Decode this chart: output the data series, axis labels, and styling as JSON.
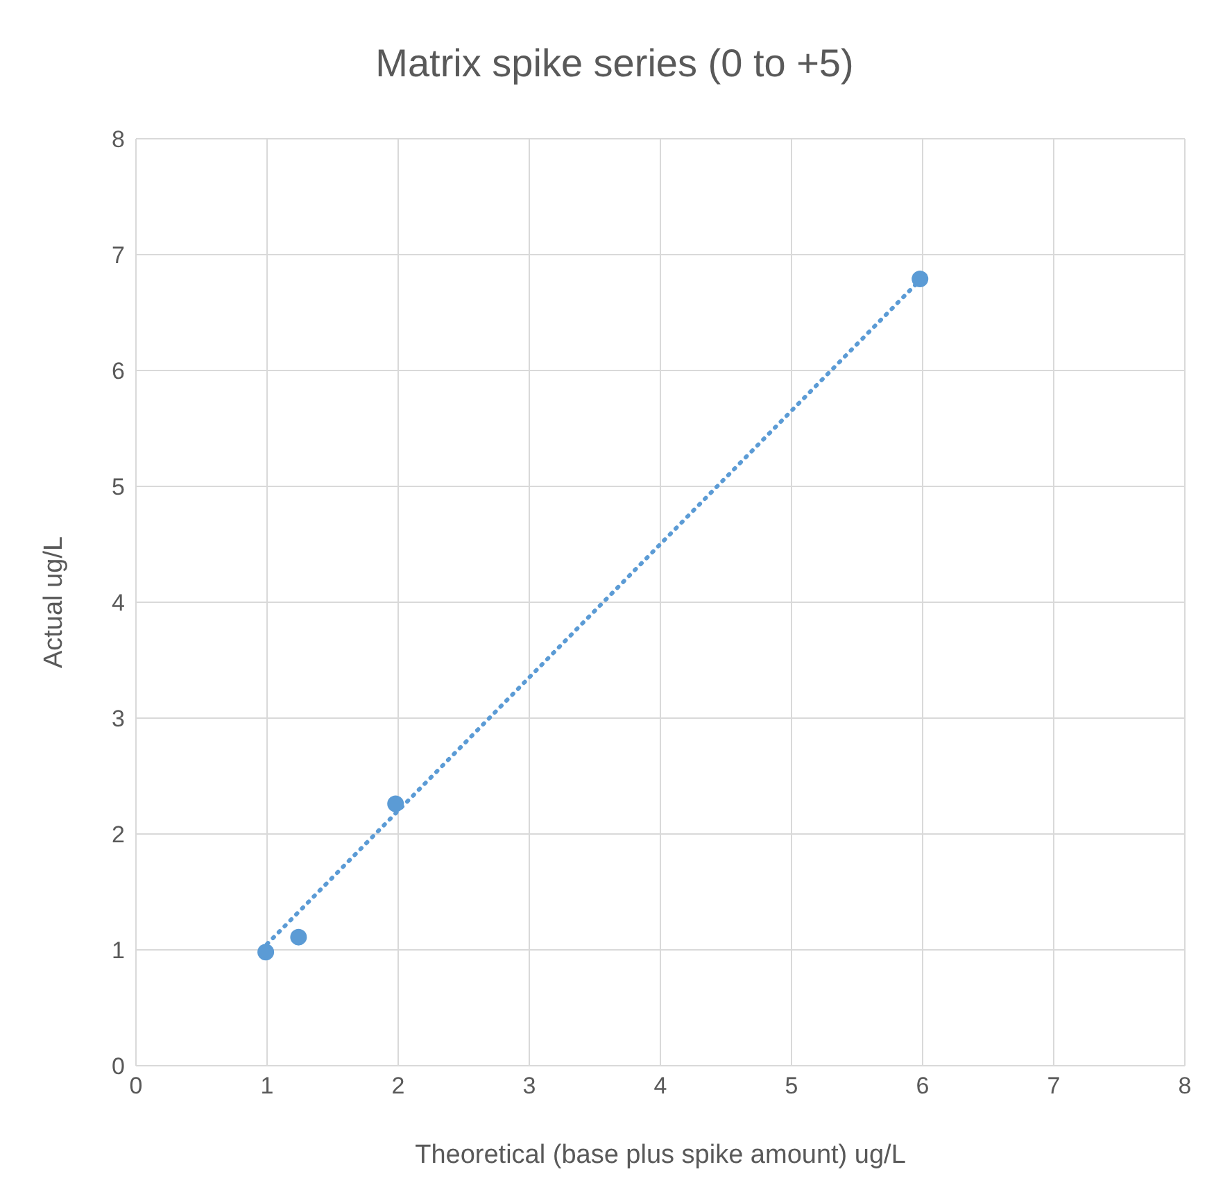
{
  "chart_data": {
    "type": "scatter",
    "title": "Matrix spike series (0 to +5)",
    "xlabel": "Theoretical (base plus spike amount) ug/L",
    "ylabel": "Actual ug/L",
    "xlim": [
      0,
      8
    ],
    "ylim": [
      0,
      8
    ],
    "xticks": [
      0,
      1,
      2,
      3,
      4,
      5,
      6,
      7,
      8
    ],
    "yticks": [
      0,
      1,
      2,
      3,
      4,
      5,
      6,
      7,
      8
    ],
    "grid": true,
    "series": [
      {
        "color": "#5b9bd5",
        "marker": "circle",
        "x": [
          0.99,
          1.24,
          1.98,
          5.98
        ],
        "values": [
          0.98,
          1.11,
          2.26,
          6.79
        ]
      },
      {
        "type": "line",
        "color": "#5b9bd5",
        "marker": "none",
        "line_style": "dotted",
        "x": [
          1,
          5.98
        ],
        "values": [
          1.05,
          6.78
        ]
      }
    ]
  }
}
